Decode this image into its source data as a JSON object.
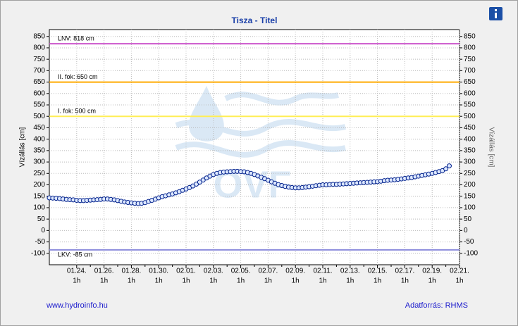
{
  "chart_data": {
    "type": "line",
    "title": "Tisza - Titel",
    "ylabel": "Vízállás [cm]",
    "watermark": "OVF",
    "footer_left": "www.hydroinfo.hu",
    "footer_right": "Adatforrás: RHMS",
    "ylim": [
      -150,
      880
    ],
    "yticks": [
      -100,
      -50,
      0,
      50,
      100,
      150,
      200,
      250,
      300,
      350,
      400,
      450,
      500,
      550,
      600,
      650,
      700,
      750,
      800,
      850
    ],
    "xlim": [
      "01.22 01",
      "02.21 01"
    ],
    "xticks": [
      {
        "value": "01.24 01",
        "label": "01.24.",
        "sublabel": "1h"
      },
      {
        "value": "01.26 01",
        "label": "01.26.",
        "sublabel": "1h"
      },
      {
        "value": "01.28 01",
        "label": "01.28.",
        "sublabel": "1h"
      },
      {
        "value": "01.30 01",
        "label": "01.30.",
        "sublabel": "1h"
      },
      {
        "value": "02.01 01",
        "label": "02.01.",
        "sublabel": "1h"
      },
      {
        "value": "02.03 01",
        "label": "02.03.",
        "sublabel": "1h"
      },
      {
        "value": "02.05 01",
        "label": "02.05.",
        "sublabel": "1h"
      },
      {
        "value": "02.07 01",
        "label": "02.07.",
        "sublabel": "1h"
      },
      {
        "value": "02.09 01",
        "label": "02.09.",
        "sublabel": "1h"
      },
      {
        "value": "02.11 01",
        "label": "02.11.",
        "sublabel": "1h"
      },
      {
        "value": "02.13 01",
        "label": "02.13.",
        "sublabel": "1h"
      },
      {
        "value": "02.15 01",
        "label": "02.15.",
        "sublabel": "1h"
      },
      {
        "value": "02.17 01",
        "label": "02.17.",
        "sublabel": "1h"
      },
      {
        "value": "02.19 01",
        "label": "02.19.",
        "sublabel": "1h"
      },
      {
        "value": "02.21 01",
        "label": "02.21.",
        "sublabel": "1h"
      }
    ],
    "grid": true,
    "reference_lines": [
      {
        "label": "LNV: 818 cm",
        "value": 818,
        "color": "#cc55cc"
      },
      {
        "label": "II. fok: 650 cm",
        "value": 650,
        "color": "#ffaa00"
      },
      {
        "label": "I. fok: 500 cm",
        "value": 500,
        "color": "#ffee55"
      },
      {
        "label": "LKV: -85 cm",
        "value": -85,
        "color": "#8c8cdc"
      }
    ],
    "x": [
      "01.22 01",
      "01.22 07",
      "01.22 13",
      "01.22 19",
      "01.23 01",
      "01.23 07",
      "01.23 13",
      "01.23 19",
      "01.24 01",
      "01.24 07",
      "01.24 13",
      "01.24 19",
      "01.25 01",
      "01.25 07",
      "01.25 13",
      "01.25 19",
      "01.26 01",
      "01.26 07",
      "01.26 13",
      "01.26 19",
      "01.27 01",
      "01.27 07",
      "01.27 13",
      "01.27 19",
      "01.28 01",
      "01.28 07",
      "01.28 13",
      "01.28 19",
      "01.29 01",
      "01.29 07",
      "01.29 13",
      "01.29 19",
      "01.30 01",
      "01.30 07",
      "01.30 13",
      "01.30 19",
      "01.31 01",
      "01.31 07",
      "01.31 13",
      "01.31 19",
      "02.01 01",
      "02.01 07",
      "02.01 13",
      "02.01 19",
      "02.02 01",
      "02.02 07",
      "02.02 13",
      "02.02 19",
      "02.03 01",
      "02.03 07",
      "02.03 13",
      "02.03 19",
      "02.04 01",
      "02.04 07",
      "02.04 13",
      "02.04 19",
      "02.05 01",
      "02.05 07",
      "02.05 13",
      "02.05 19",
      "02.06 01",
      "02.06 07",
      "02.06 13",
      "02.06 19",
      "02.07 01",
      "02.07 07",
      "02.07 13",
      "02.07 19",
      "02.08 01",
      "02.08 07",
      "02.08 13",
      "02.08 19",
      "02.09 01",
      "02.09 07",
      "02.09 13",
      "02.09 19",
      "02.10 01",
      "02.10 07",
      "02.10 13",
      "02.10 19",
      "02.11 01",
      "02.11 07",
      "02.11 13",
      "02.11 19",
      "02.12 01",
      "02.12 07",
      "02.12 13",
      "02.12 19",
      "02.13 01",
      "02.13 07",
      "02.13 13",
      "02.13 19",
      "02.14 01",
      "02.14 07",
      "02.14 13",
      "02.14 19",
      "02.15 01",
      "02.15 07",
      "02.15 13",
      "02.15 19",
      "02.16 01",
      "02.16 07",
      "02.16 13",
      "02.16 19",
      "02.17 01",
      "02.17 07",
      "02.17 13",
      "02.17 19",
      "02.18 01",
      "02.18 07",
      "02.18 13",
      "02.18 19",
      "02.19 01",
      "02.19 07",
      "02.19 13",
      "02.19 19",
      "02.20 01",
      "02.20 07"
    ],
    "series": [
      {
        "name": "Vízállás",
        "color": "#00208c",
        "values": [
          143,
          142,
          141,
          140,
          138,
          136,
          135,
          134,
          132,
          131,
          131,
          132,
          133,
          134,
          135,
          136,
          138,
          138,
          136,
          134,
          131,
          128,
          125,
          123,
          121,
          119,
          118,
          119,
          122,
          127,
          132,
          137,
          143,
          148,
          152,
          156,
          160,
          165,
          170,
          176,
          182,
          188,
          195,
          203,
          212,
          221,
          230,
          238,
          245,
          250,
          254,
          256,
          257,
          258,
          259,
          259,
          258,
          257,
          254,
          250,
          245,
          239,
          233,
          227,
          220,
          213,
          207,
          201,
          197,
          193,
          190,
          188,
          187,
          187,
          188,
          190,
          192,
          194,
          196,
          198,
          200,
          200,
          201,
          202,
          202,
          203,
          204,
          205,
          206,
          207,
          208,
          209,
          210,
          211,
          212,
          213,
          214,
          216,
          218,
          220,
          221,
          222,
          224,
          226,
          228,
          230,
          232,
          235,
          238,
          241,
          244,
          247,
          250,
          254,
          258,
          262,
          270,
          283
        ]
      }
    ]
  }
}
